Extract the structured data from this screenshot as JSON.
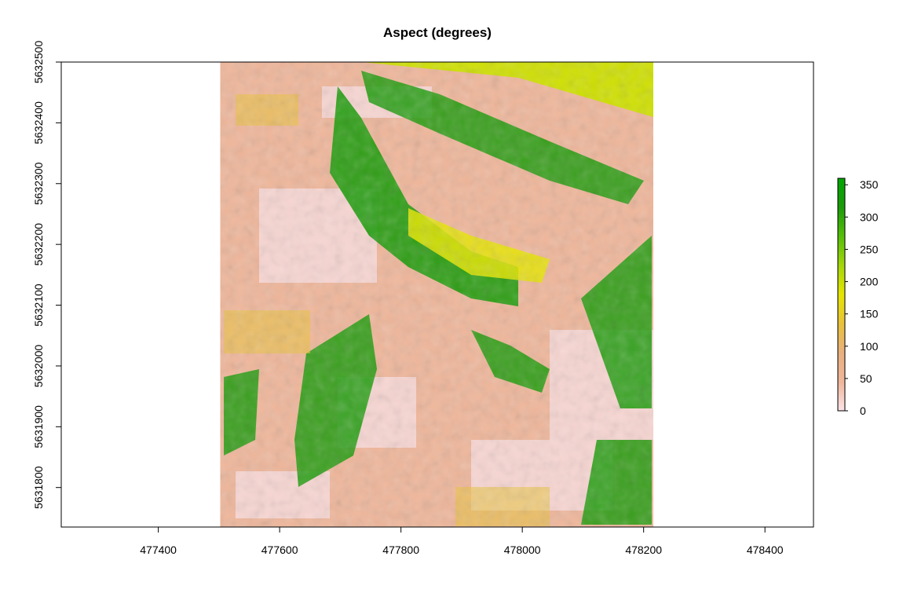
{
  "chart_data": {
    "type": "heatmap",
    "title": "Aspect (degrees)",
    "xlabel": "",
    "ylabel": "",
    "xlim": [
      477240,
      478480
    ],
    "ylim": [
      5631735,
      5632500
    ],
    "x_ticks": [
      477400,
      477600,
      477800,
      478000,
      478200,
      478400
    ],
    "y_ticks": [
      5631800,
      5631900,
      5632000,
      5632100,
      5632200,
      5632300,
      5632400,
      5632500
    ],
    "raster_extent": {
      "xmin": 477502,
      "xmax": 478216,
      "ymin": 5631735,
      "ymax": 5632500
    },
    "legend": {
      "placement": "right",
      "range": [
        0,
        360
      ],
      "ticks": [
        0,
        50,
        100,
        150,
        200,
        250,
        300,
        350
      ]
    },
    "colormap": [
      "#fbe3e8",
      "#efb69a",
      "#e9b07e",
      "#e8c23a",
      "#e5e500",
      "#a4d60b",
      "#55bf08",
      "#1a9b08",
      "#00a600"
    ],
    "grid": false,
    "regions": [
      {
        "value": 60,
        "desc": "background east-facing slopes"
      },
      {
        "value": 300,
        "desc": "large NW-facing diagonal slope"
      },
      {
        "value": 200,
        "desc": "south-facing ridge band"
      },
      {
        "value": 320,
        "desc": "west valley NW slopes"
      },
      {
        "value": 15,
        "desc": "north-facing pale slopes"
      }
    ]
  }
}
